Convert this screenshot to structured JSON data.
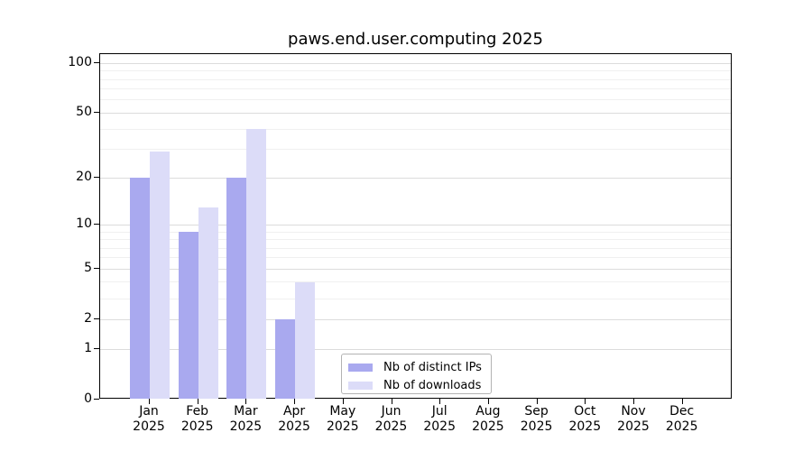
{
  "title": "paws.end.user.computing 2025",
  "legend": {
    "items": [
      {
        "label": "Nb of distinct IPs",
        "color": "#a9a9ef"
      },
      {
        "label": "Nb of downloads",
        "color": "#dcdcf8"
      }
    ]
  },
  "y_axis": {
    "major_ticks": [
      0,
      1,
      2,
      5,
      10,
      20,
      50,
      100
    ],
    "minor_ticks": [
      3,
      4,
      6,
      7,
      8,
      9,
      30,
      40,
      60,
      70,
      80,
      90
    ]
  },
  "x_axis": {
    "months": [
      {
        "label": "Jan",
        "year": "2025"
      },
      {
        "label": "Feb",
        "year": "2025"
      },
      {
        "label": "Mar",
        "year": "2025"
      },
      {
        "label": "Apr",
        "year": "2025"
      },
      {
        "label": "May",
        "year": "2025"
      },
      {
        "label": "Jun",
        "year": "2025"
      },
      {
        "label": "Jul",
        "year": "2025"
      },
      {
        "label": "Aug",
        "year": "2025"
      },
      {
        "label": "Sep",
        "year": "2025"
      },
      {
        "label": "Oct",
        "year": "2025"
      },
      {
        "label": "Nov",
        "year": "2025"
      },
      {
        "label": "Dec",
        "year": "2025"
      }
    ]
  },
  "chart_data": {
    "type": "bar",
    "title": "paws.end.user.computing 2025",
    "categories": [
      "Jan 2025",
      "Feb 2025",
      "Mar 2025",
      "Apr 2025",
      "May 2025",
      "Jun 2025",
      "Jul 2025",
      "Aug 2025",
      "Sep 2025",
      "Oct 2025",
      "Nov 2025",
      "Dec 2025"
    ],
    "series": [
      {
        "name": "Nb of distinct IPs",
        "color": "#a9a9ef",
        "values": [
          20,
          9,
          20,
          2,
          0,
          0,
          0,
          0,
          0,
          0,
          0,
          0
        ]
      },
      {
        "name": "Nb of downloads",
        "color": "#dcdcf8",
        "values": [
          29,
          13,
          40,
          4,
          0,
          0,
          0,
          0,
          0,
          0,
          0,
          0
        ]
      }
    ],
    "xlabel": "",
    "ylabel": "",
    "y_scale": "log1p",
    "y_ticks": [
      0,
      1,
      2,
      5,
      10,
      20,
      50,
      100
    ],
    "ylim": [
      0,
      100
    ],
    "grid": true,
    "legend_position": "lower-center"
  }
}
